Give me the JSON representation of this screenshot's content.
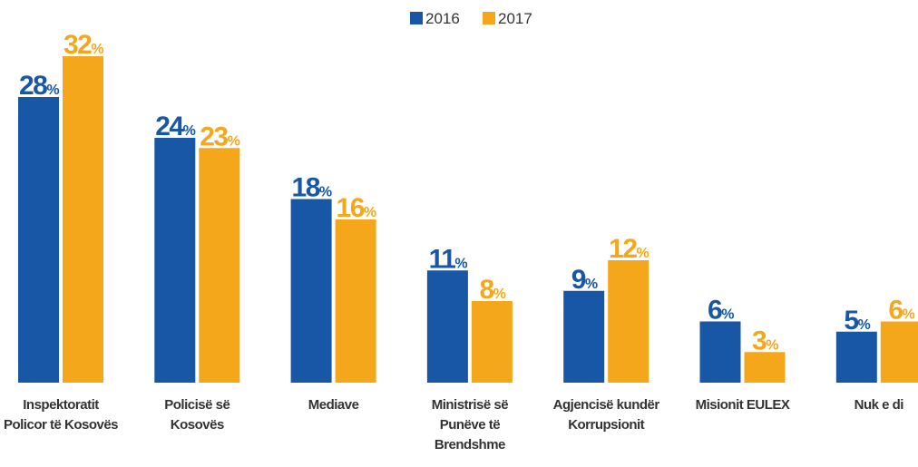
{
  "chart_data": {
    "type": "bar",
    "categories": [
      "Inspektoratit Policor të Kosovës",
      "Policisë së Kosovës",
      "Mediave",
      "Ministrisë së Punëve të Brendshme",
      "Agjencisë kundër Korrupsionit",
      "Misionit EULEX",
      "Nuk e di"
    ],
    "series": [
      {
        "name": "2016",
        "color": "#1757a6",
        "values": [
          28,
          24,
          18,
          11,
          9,
          6,
          5
        ],
        "value_labels": [
          "28%",
          "24%",
          "18%",
          "11%",
          "9%",
          "6%",
          "5%"
        ]
      },
      {
        "name": "2017",
        "color": "#f5a71c",
        "values": [
          32,
          23,
          16,
          8,
          12,
          3,
          6
        ],
        "value_labels": [
          "32%",
          "23%",
          "16%",
          "8%",
          "12%",
          "3%",
          "6%"
        ]
      }
    ],
    "legend": "top"
  }
}
